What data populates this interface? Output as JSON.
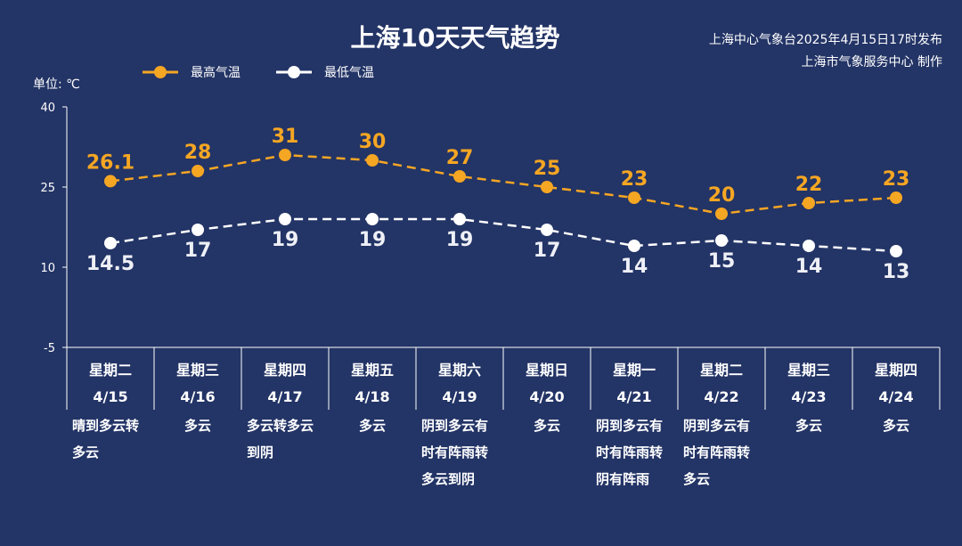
{
  "header": {
    "title": "上海10天天气趋势",
    "source_line1": "上海中心气象台2025年4月15日17时发布",
    "source_line2": "上海市气象服务中心 制作"
  },
  "chart_data": {
    "type": "line",
    "title": "上海10天天气趋势",
    "unit_label": "单位: ℃",
    "ylim": [
      -5,
      40
    ],
    "yticks": [
      40,
      25,
      10,
      -5
    ],
    "legend_position": "top-left",
    "categories": [
      "4/15",
      "4/16",
      "4/17",
      "4/18",
      "4/19",
      "4/20",
      "4/21",
      "4/22",
      "4/23",
      "4/24"
    ],
    "weekdays": [
      "星期二",
      "星期三",
      "星期四",
      "星期五",
      "星期六",
      "星期日",
      "星期一",
      "星期二",
      "星期三",
      "星期四"
    ],
    "conditions": [
      [
        "晴到多云转",
        "多云"
      ],
      [
        "多云"
      ],
      [
        "多云转多云",
        "到阴"
      ],
      [
        "多云"
      ],
      [
        "阴到多云有",
        "时有阵雨转",
        "多云到阴"
      ],
      [
        "多云"
      ],
      [
        "阴到多云有",
        "时有阵雨转",
        "阴有阵雨"
      ],
      [
        "阴到多云有",
        "时有阵雨转",
        "多云"
      ],
      [
        "多云"
      ],
      [
        "多云"
      ]
    ],
    "series": [
      {
        "name": "最高气温",
        "color": "#f5a623",
        "values": [
          26.1,
          28,
          31,
          30,
          27,
          25,
          23,
          20,
          22,
          23
        ]
      },
      {
        "name": "最低气温",
        "color": "#ffffff",
        "values": [
          14.5,
          17,
          19,
          19,
          19,
          17,
          14,
          15,
          14,
          13
        ]
      }
    ]
  }
}
